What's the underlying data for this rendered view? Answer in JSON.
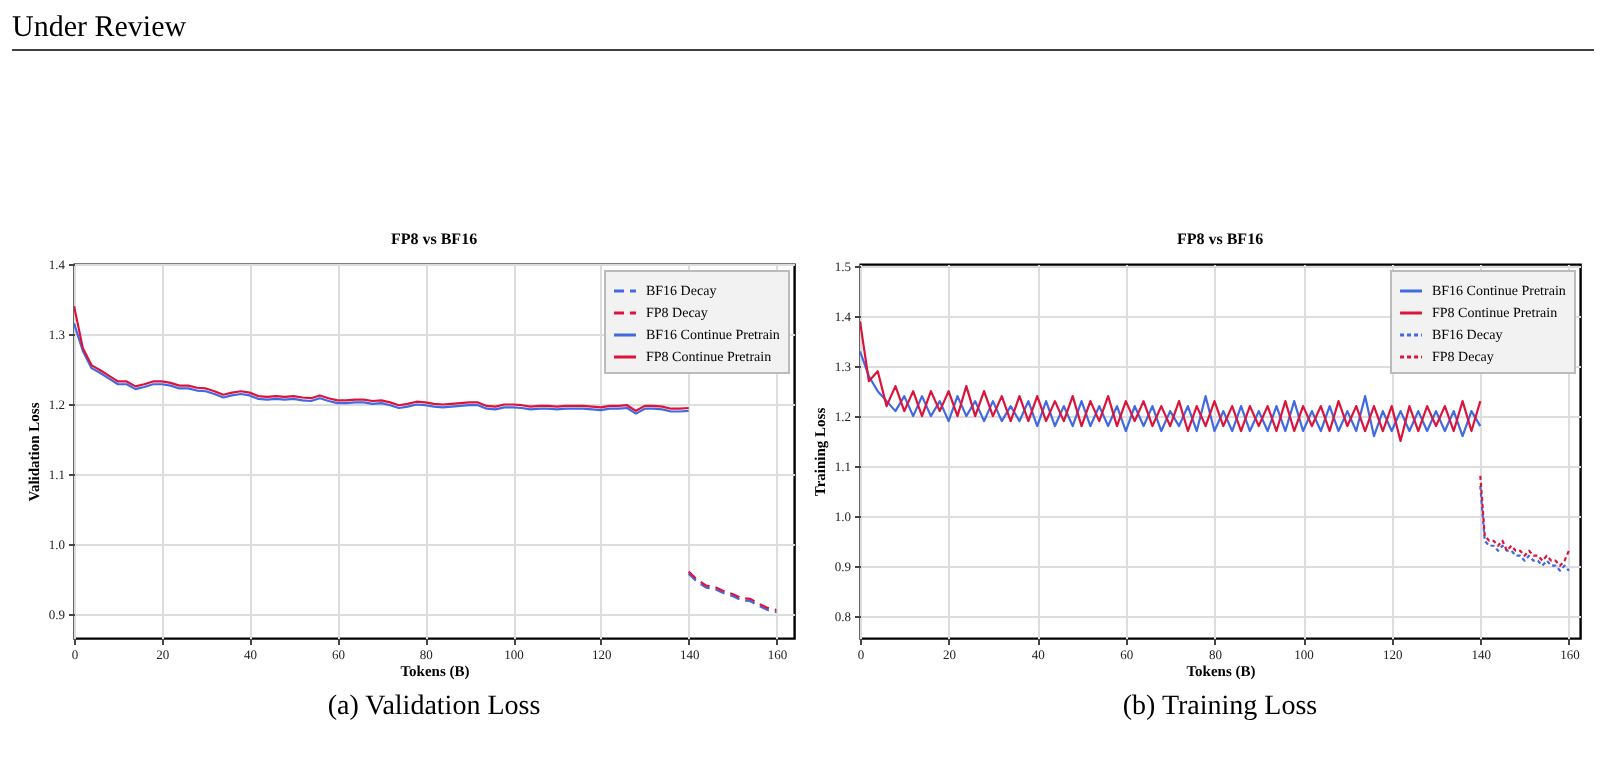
{
  "chart_data": [
    {
      "type": "line",
      "title": "FP8 vs BF16",
      "xlabel": "Tokens (B)",
      "ylabel": "Validation Loss",
      "xlim": [
        0,
        164
      ],
      "ylim": [
        0.865,
        1.4
      ],
      "xticks": [
        0,
        20,
        40,
        60,
        80,
        100,
        120,
        140,
        160
      ],
      "yticks": [
        0.9,
        {
          "value": 1.0,
          "label": "1.0"
        },
        1.1,
        1.2,
        1.3,
        1.4
      ],
      "grid": true,
      "legend": "top right",
      "annotations": [
        "Under Review",
        "(a) Validation Loss"
      ],
      "series": [
        {
          "name": "BF16 Decay",
          "color": "#4169e1",
          "line_style": "dashed",
          "x": [
            140,
            142,
            144,
            146,
            148,
            150,
            152,
            154,
            156,
            158,
            160
          ],
          "values": [
            0.957,
            0.945,
            0.937,
            0.935,
            0.929,
            0.925,
            0.919,
            0.918,
            0.911,
            0.905,
            0.902
          ]
        },
        {
          "name": "FP8 Decay",
          "color": "#dc143c",
          "line_style": "dashed",
          "x": [
            140,
            142,
            144,
            146,
            148,
            150,
            152,
            154,
            156,
            158,
            160
          ],
          "values": [
            0.96,
            0.948,
            0.94,
            0.938,
            0.932,
            0.928,
            0.922,
            0.921,
            0.914,
            0.908,
            0.905
          ]
        },
        {
          "name": "BF16 Continue Pretrain",
          "color": "#4169e1",
          "line_style": "solid",
          "x": [
            0,
            2,
            4,
            6,
            8,
            10,
            12,
            14,
            16,
            18,
            20,
            22,
            24,
            26,
            28,
            30,
            32,
            34,
            36,
            38,
            40,
            42,
            44,
            46,
            48,
            50,
            52,
            54,
            56,
            58,
            60,
            62,
            64,
            66,
            68,
            70,
            72,
            74,
            76,
            78,
            80,
            82,
            84,
            86,
            88,
            90,
            92,
            94,
            96,
            98,
            100,
            102,
            104,
            106,
            108,
            110,
            112,
            114,
            116,
            118,
            120,
            122,
            124,
            126,
            128,
            130,
            132,
            134,
            136,
            138,
            140
          ],
          "values": [
            1.315,
            1.276,
            1.251,
            1.244,
            1.236,
            1.228,
            1.228,
            1.221,
            1.224,
            1.228,
            1.228,
            1.226,
            1.222,
            1.222,
            1.219,
            1.218,
            1.214,
            1.209,
            1.212,
            1.214,
            1.212,
            1.207,
            1.206,
            1.207,
            1.206,
            1.207,
            1.205,
            1.204,
            1.208,
            1.204,
            1.201,
            1.201,
            1.202,
            1.202,
            1.2,
            1.201,
            1.198,
            1.194,
            1.196,
            1.199,
            1.198,
            1.196,
            1.195,
            1.196,
            1.197,
            1.198,
            1.198,
            1.193,
            1.192,
            1.195,
            1.195,
            1.194,
            1.192,
            1.193,
            1.193,
            1.192,
            1.193,
            1.193,
            1.193,
            1.192,
            1.191,
            1.193,
            1.193,
            1.194,
            1.186,
            1.193,
            1.193,
            1.192,
            1.189,
            1.189,
            1.19
          ]
        },
        {
          "name": "FP8 Continue Pretrain",
          "color": "#dc143c",
          "line_style": "solid",
          "x": [
            0,
            2,
            4,
            6,
            8,
            10,
            12,
            14,
            16,
            18,
            20,
            22,
            24,
            26,
            28,
            30,
            32,
            34,
            36,
            38,
            40,
            42,
            44,
            46,
            48,
            50,
            52,
            54,
            56,
            58,
            60,
            62,
            64,
            66,
            68,
            70,
            72,
            74,
            76,
            78,
            80,
            82,
            84,
            86,
            88,
            90,
            92,
            94,
            96,
            98,
            100,
            102,
            104,
            106,
            108,
            110,
            112,
            114,
            116,
            118,
            120,
            122,
            124,
            126,
            128,
            130,
            132,
            134,
            136,
            138,
            140
          ],
          "values": [
            1.34,
            1.28,
            1.255,
            1.248,
            1.24,
            1.232,
            1.232,
            1.225,
            1.228,
            1.232,
            1.232,
            1.23,
            1.226,
            1.226,
            1.223,
            1.222,
            1.218,
            1.213,
            1.216,
            1.218,
            1.216,
            1.211,
            1.21,
            1.211,
            1.21,
            1.211,
            1.209,
            1.208,
            1.212,
            1.208,
            1.205,
            1.205,
            1.206,
            1.206,
            1.204,
            1.205,
            1.202,
            1.198,
            1.2,
            1.203,
            1.202,
            1.2,
            1.199,
            1.2,
            1.201,
            1.202,
            1.202,
            1.197,
            1.196,
            1.199,
            1.199,
            1.198,
            1.196,
            1.197,
            1.197,
            1.196,
            1.197,
            1.197,
            1.197,
            1.196,
            1.195,
            1.197,
            1.197,
            1.198,
            1.19,
            1.197,
            1.197,
            1.196,
            1.193,
            1.193,
            1.194
          ]
        }
      ]
    },
    {
      "type": "line",
      "title": "FP8 vs BF16",
      "xlabel": "Tokens (B)",
      "ylabel": "Training Loss",
      "xlim": [
        0,
        162.5
      ],
      "ylim": [
        0.755,
        1.505
      ],
      "xticks": [
        0,
        20,
        40,
        60,
        80,
        100,
        120,
        140,
        160
      ],
      "yticks": [
        0.8,
        0.9,
        {
          "value": 1.0,
          "label": "1.0"
        },
        1.1,
        1.2,
        1.3,
        1.4,
        1.5
      ],
      "grid": true,
      "legend": "top right",
      "annotations": [
        "(b) Training Loss"
      ],
      "series": [
        {
          "name": "BF16 Continue Pretrain",
          "color": "#4169e1",
          "line_style": "solid",
          "x": [
            0,
            2,
            4,
            6,
            8,
            10,
            12,
            14,
            16,
            18,
            20,
            22,
            24,
            26,
            28,
            30,
            32,
            34,
            36,
            38,
            40,
            42,
            44,
            46,
            48,
            50,
            52,
            54,
            56,
            58,
            60,
            62,
            64,
            66,
            68,
            70,
            72,
            74,
            76,
            78,
            80,
            82,
            84,
            86,
            88,
            90,
            92,
            94,
            96,
            98,
            100,
            102,
            104,
            106,
            108,
            110,
            112,
            114,
            116,
            118,
            120,
            122,
            124,
            126,
            128,
            130,
            132,
            134,
            136,
            138,
            140
          ],
          "values": [
            1.33,
            1.28,
            1.25,
            1.23,
            1.21,
            1.24,
            1.2,
            1.24,
            1.2,
            1.23,
            1.19,
            1.24,
            1.2,
            1.23,
            1.19,
            1.23,
            1.19,
            1.22,
            1.19,
            1.23,
            1.18,
            1.23,
            1.18,
            1.22,
            1.18,
            1.23,
            1.18,
            1.22,
            1.18,
            1.22,
            1.17,
            1.22,
            1.18,
            1.22,
            1.17,
            1.21,
            1.18,
            1.22,
            1.17,
            1.24,
            1.17,
            1.21,
            1.17,
            1.22,
            1.17,
            1.21,
            1.17,
            1.22,
            1.17,
            1.23,
            1.17,
            1.21,
            1.17,
            1.22,
            1.17,
            1.21,
            1.17,
            1.24,
            1.16,
            1.21,
            1.17,
            1.21,
            1.17,
            1.21,
            1.17,
            1.21,
            1.17,
            1.21,
            1.16,
            1.21,
            1.18
          ]
        },
        {
          "name": "FP8 Continue Pretrain",
          "color": "#dc143c",
          "line_style": "solid",
          "x": [
            0,
            2,
            4,
            6,
            8,
            10,
            12,
            14,
            16,
            18,
            20,
            22,
            24,
            26,
            28,
            30,
            32,
            34,
            36,
            38,
            40,
            42,
            44,
            46,
            48,
            50,
            52,
            54,
            56,
            58,
            60,
            62,
            64,
            66,
            68,
            70,
            72,
            74,
            76,
            78,
            80,
            82,
            84,
            86,
            88,
            90,
            92,
            94,
            96,
            98,
            100,
            102,
            104,
            106,
            108,
            110,
            112,
            114,
            116,
            118,
            120,
            122,
            124,
            126,
            128,
            130,
            132,
            134,
            136,
            138,
            140
          ],
          "values": [
            1.39,
            1.27,
            1.29,
            1.22,
            1.26,
            1.21,
            1.25,
            1.2,
            1.25,
            1.21,
            1.25,
            1.2,
            1.26,
            1.2,
            1.25,
            1.2,
            1.24,
            1.19,
            1.24,
            1.19,
            1.24,
            1.19,
            1.23,
            1.19,
            1.24,
            1.18,
            1.23,
            1.19,
            1.24,
            1.18,
            1.23,
            1.19,
            1.23,
            1.18,
            1.22,
            1.18,
            1.23,
            1.17,
            1.22,
            1.18,
            1.23,
            1.18,
            1.22,
            1.17,
            1.22,
            1.18,
            1.22,
            1.17,
            1.23,
            1.17,
            1.22,
            1.18,
            1.22,
            1.17,
            1.23,
            1.18,
            1.22,
            1.17,
            1.22,
            1.17,
            1.22,
            1.15,
            1.22,
            1.17,
            1.22,
            1.18,
            1.22,
            1.17,
            1.23,
            1.17,
            1.23
          ]
        },
        {
          "name": "BF16 Decay",
          "color": "#4169e1",
          "line_style": "dotted",
          "x": [
            140,
            141,
            142,
            143,
            144,
            145,
            146,
            147,
            148,
            149,
            150,
            151,
            152,
            153,
            154,
            155,
            156,
            157,
            158,
            159,
            160
          ],
          "values": [
            1.06,
            0.95,
            0.94,
            0.94,
            0.93,
            0.94,
            0.93,
            0.93,
            0.92,
            0.92,
            0.91,
            0.92,
            0.91,
            0.91,
            0.9,
            0.91,
            0.9,
            0.9,
            0.89,
            0.9,
            0.89
          ]
        },
        {
          "name": "FP8 Decay",
          "color": "#dc143c",
          "line_style": "dotted",
          "x": [
            140,
            141,
            142,
            143,
            144,
            145,
            146,
            147,
            148,
            149,
            150,
            151,
            152,
            153,
            154,
            155,
            156,
            157,
            158,
            159,
            160
          ],
          "values": [
            1.08,
            0.96,
            0.95,
            0.95,
            0.94,
            0.95,
            0.93,
            0.94,
            0.93,
            0.93,
            0.92,
            0.93,
            0.92,
            0.92,
            0.91,
            0.92,
            0.91,
            0.91,
            0.9,
            0.91,
            0.93
          ]
        }
      ]
    }
  ]
}
